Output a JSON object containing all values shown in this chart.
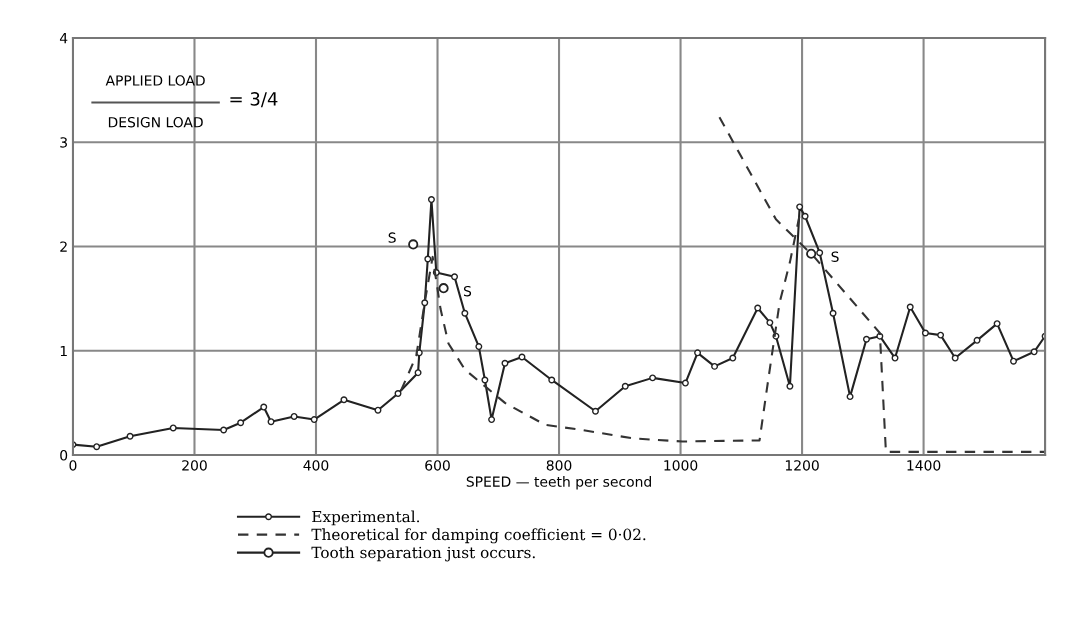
{
  "chart_data": {
    "type": "line",
    "xlabel": "SPEED — teeth per second",
    "xlim": [
      0,
      1600
    ],
    "xticks": [
      0,
      200,
      400,
      600,
      800,
      1000,
      1200,
      1400,
      {
        "value": 1600,
        "label": null
      }
    ],
    "ylim": [
      0,
      4
    ],
    "yticks": [
      0,
      1,
      2,
      3,
      4
    ],
    "grid": true,
    "legend": "bottom",
    "series": [
      {
        "name": "Experimental.",
        "color": "#222222",
        "marker": "circle",
        "line_style": "solid",
        "x": [
          0,
          39,
          94,
          165,
          248,
          276,
          314,
          326,
          364,
          397,
          446,
          502,
          535,
          568,
          570,
          579,
          584,
          590,
          598,
          628,
          645,
          668,
          678,
          689,
          711,
          739,
          788,
          860,
          909,
          954,
          1008,
          1028,
          1056,
          1086,
          1127,
          1147,
          1157,
          1180,
          1196,
          1205,
          1229,
          1251,
          1279,
          1306,
          1328,
          1353,
          1378,
          1403,
          1428,
          1452,
          1488,
          1521,
          1548,
          1582,
          1600
        ],
        "values": [
          0.1,
          0.08,
          0.18,
          0.26,
          0.24,
          0.31,
          0.46,
          0.32,
          0.37,
          0.34,
          0.53,
          0.43,
          0.59,
          0.79,
          0.98,
          1.46,
          1.88,
          2.45,
          1.75,
          1.71,
          1.36,
          1.04,
          0.72,
          0.34,
          0.88,
          0.94,
          0.72,
          0.42,
          0.66,
          0.74,
          0.69,
          0.98,
          0.85,
          0.93,
          1.41,
          1.27,
          1.14,
          0.66,
          2.38,
          2.29,
          1.94,
          1.36,
          0.56,
          1.11,
          1.14,
          0.93,
          1.42,
          1.17,
          1.15,
          0.93,
          1.1,
          1.26,
          0.9,
          0.99,
          1.14
        ]
      },
      {
        "name": "Theoretical for damping coefficient = 0·02.",
        "color": "#333333",
        "marker": "none",
        "line_style": "dashed",
        "x": [
          540,
          565,
          580,
          592,
          605,
          618,
          645,
          711,
          777,
          838,
          921,
          1003,
          1130,
          1141,
          1163,
          1180,
          1196
        ],
        "values": [
          0.62,
          0.95,
          1.5,
          1.9,
          1.4,
          1.07,
          0.82,
          0.5,
          0.29,
          0.24,
          0.16,
          0.13,
          0.14,
          0.59,
          1.46,
          1.85,
          2.3
        ]
      },
      {
        "color": "#333333",
        "marker": "none",
        "line_style": "dashed",
        "x": [
          1064,
          1157,
          1220,
          1328,
          1338,
          1600
        ],
        "values": [
          3.24,
          2.26,
          1.9,
          1.17,
          0.03,
          0.03
        ]
      },
      {
        "name": "Tooth separation just occurs.",
        "type": "scatter",
        "color": "#222222",
        "marker": "circle",
        "x": [
          560,
          610,
          1215
        ],
        "values": [
          2.02,
          1.6,
          1.93
        ]
      }
    ],
    "annotations": [
      "APPLIED LOAD",
      "DESIGN LOAD",
      "= 3/4",
      "S",
      "S",
      "S"
    ]
  }
}
